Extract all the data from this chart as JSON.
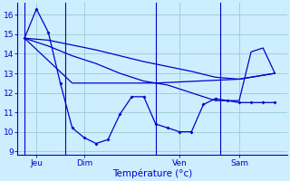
{
  "background_color": "#cceeff",
  "grid_color": "#99cccc",
  "line_color": "#0000cc",
  "xlabel": "Température (°c)",
  "ylim": [
    8.8,
    16.6
  ],
  "xlim": [
    -0.3,
    11.0
  ],
  "series1_x": [
    0,
    0.5,
    1.0,
    1.5,
    2.0,
    2.5,
    3.0,
    3.5,
    4.0,
    4.5,
    5.0,
    5.5,
    6.0,
    6.5,
    7.0,
    7.5,
    8.0,
    8.5,
    9.0,
    9.5,
    10.0,
    10.5
  ],
  "series1_y": [
    14.8,
    16.3,
    15.1,
    12.5,
    10.2,
    9.7,
    9.4,
    9.6,
    10.9,
    11.8,
    11.8,
    10.4,
    10.2,
    10.0,
    10.0,
    11.4,
    11.7,
    11.6,
    11.5,
    11.5,
    11.5,
    11.5
  ],
  "series2_x": [
    0,
    2.0,
    5.5,
    9.0,
    10.5
  ],
  "series2_y": [
    14.8,
    12.5,
    12.5,
    12.7,
    13.0
  ],
  "series3_x": [
    0,
    1.0,
    2.0,
    3.0,
    4.0,
    5.0,
    6.0,
    7.0,
    8.0,
    9.0,
    9.5,
    10.0,
    10.5
  ],
  "series3_y": [
    14.8,
    14.4,
    13.9,
    13.5,
    13.0,
    12.6,
    12.4,
    12.0,
    11.6,
    11.6,
    14.1,
    14.3,
    13.0
  ],
  "series4_x": [
    0,
    1.0,
    2.0,
    3.0,
    4.0,
    5.0,
    6.0,
    7.0,
    8.0,
    9.0,
    10.5
  ],
  "series4_y": [
    14.8,
    14.7,
    14.45,
    14.2,
    13.9,
    13.6,
    13.35,
    13.1,
    12.8,
    12.7,
    13.0
  ],
  "xtick_positions": [
    0.5,
    2.5,
    6.5,
    9.0
  ],
  "xtick_labels": [
    "Jeu",
    "Dim",
    "Ven",
    "Sam"
  ],
  "ytick_positions": [
    9,
    10,
    11,
    12,
    13,
    14,
    15,
    16
  ],
  "vline_positions": [
    0.0,
    1.7,
    5.5,
    8.2
  ]
}
